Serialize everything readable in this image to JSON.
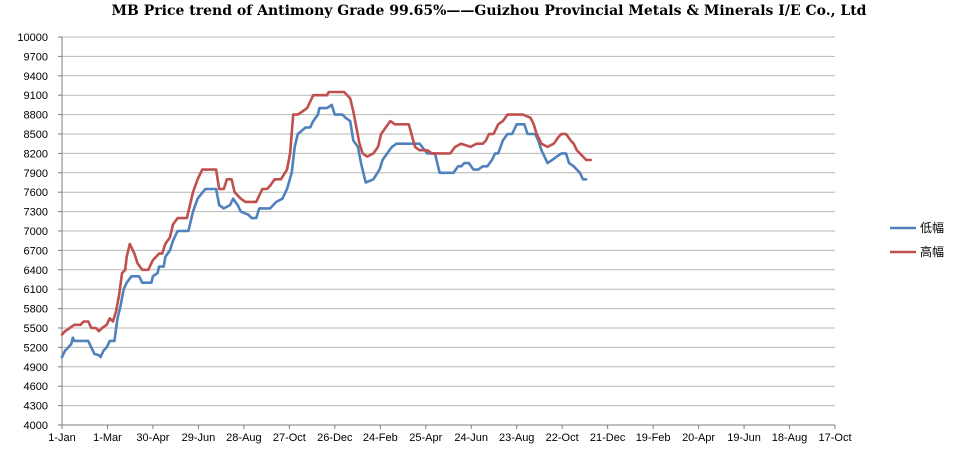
{
  "chart_data": {
    "type": "line",
    "title": "MB Price trend of Antimony Grade 99.65%——Guizhou Provincial Metals & Minerals I/E Co., Ltd",
    "ylim": [
      4000,
      10000
    ],
    "y_ticks": [
      4000,
      4300,
      4600,
      4900,
      5200,
      5500,
      5800,
      6100,
      6400,
      6700,
      7000,
      7300,
      7600,
      7900,
      8200,
      8500,
      8800,
      9100,
      9400,
      9700,
      10000
    ],
    "x_ticks": [
      "1-Jan",
      "1-Mar",
      "30-Apr",
      "29-Jun",
      "28-Aug",
      "27-Oct",
      "26-Dec",
      "24-Feb",
      "25-Apr",
      "24-Jun",
      "23-Aug",
      "22-Oct",
      "21-Dec",
      "19-Feb",
      "20-Apr",
      "19-Jun",
      "18-Aug",
      "17-Oct"
    ],
    "x_tick_interval_days": 59,
    "grid": "horizontal",
    "legend_position": "right",
    "series": [
      {
        "name": "低幅",
        "color": "#4f81bd",
        "points": [
          [
            0,
            5050
          ],
          [
            4,
            5150
          ],
          [
            8,
            5200
          ],
          [
            12,
            5250
          ],
          [
            14,
            5350
          ],
          [
            16,
            5300
          ],
          [
            20,
            5300
          ],
          [
            28,
            5300
          ],
          [
            34,
            5300
          ],
          [
            38,
            5200
          ],
          [
            42,
            5100
          ],
          [
            48,
            5080
          ],
          [
            50,
            5050
          ],
          [
            54,
            5150
          ],
          [
            58,
            5200
          ],
          [
            62,
            5300
          ],
          [
            68,
            5300
          ],
          [
            72,
            5650
          ],
          [
            76,
            5850
          ],
          [
            80,
            6100
          ],
          [
            84,
            6200
          ],
          [
            90,
            6300
          ],
          [
            100,
            6300
          ],
          [
            104,
            6200
          ],
          [
            116,
            6200
          ],
          [
            118,
            6300
          ],
          [
            124,
            6350
          ],
          [
            126,
            6450
          ],
          [
            132,
            6450
          ],
          [
            134,
            6600
          ],
          [
            140,
            6700
          ],
          [
            144,
            6850
          ],
          [
            150,
            7000
          ],
          [
            164,
            7000
          ],
          [
            170,
            7300
          ],
          [
            176,
            7500
          ],
          [
            186,
            7650
          ],
          [
            200,
            7650
          ],
          [
            204,
            7400
          ],
          [
            210,
            7350
          ],
          [
            218,
            7400
          ],
          [
            222,
            7500
          ],
          [
            228,
            7400
          ],
          [
            232,
            7300
          ],
          [
            242,
            7250
          ],
          [
            246,
            7200
          ],
          [
            252,
            7200
          ],
          [
            256,
            7350
          ],
          [
            270,
            7350
          ],
          [
            278,
            7450
          ],
          [
            286,
            7500
          ],
          [
            292,
            7650
          ],
          [
            298,
            7900
          ],
          [
            302,
            8300
          ],
          [
            306,
            8500
          ],
          [
            316,
            8600
          ],
          [
            322,
            8600
          ],
          [
            326,
            8700
          ],
          [
            332,
            8800
          ],
          [
            334,
            8900
          ],
          [
            344,
            8900
          ],
          [
            350,
            8950
          ],
          [
            354,
            8800
          ],
          [
            364,
            8800
          ],
          [
            368,
            8750
          ],
          [
            374,
            8700
          ],
          [
            378,
            8400
          ],
          [
            384,
            8300
          ],
          [
            388,
            8050
          ],
          [
            394,
            7750
          ],
          [
            404,
            7800
          ],
          [
            412,
            7950
          ],
          [
            416,
            8100
          ],
          [
            422,
            8200
          ],
          [
            428,
            8300
          ],
          [
            434,
            8350
          ],
          [
            464,
            8350
          ],
          [
            474,
            8200
          ],
          [
            484,
            8200
          ],
          [
            490,
            7900
          ],
          [
            508,
            7900
          ],
          [
            514,
            8000
          ],
          [
            518,
            8000
          ],
          [
            522,
            8050
          ],
          [
            528,
            8050
          ],
          [
            534,
            7950
          ],
          [
            540,
            7950
          ],
          [
            546,
            8000
          ],
          [
            552,
            8000
          ],
          [
            558,
            8100
          ],
          [
            562,
            8200
          ],
          [
            566,
            8200
          ],
          [
            572,
            8400
          ],
          [
            578,
            8500
          ],
          [
            584,
            8500
          ],
          [
            590,
            8650
          ],
          [
            600,
            8650
          ],
          [
            604,
            8500
          ],
          [
            614,
            8500
          ],
          [
            618,
            8400
          ],
          [
            622,
            8250
          ],
          [
            626,
            8150
          ],
          [
            630,
            8050
          ],
          [
            636,
            8100
          ],
          [
            642,
            8150
          ],
          [
            648,
            8200
          ],
          [
            654,
            8200
          ],
          [
            658,
            8050
          ],
          [
            664,
            8000
          ],
          [
            668,
            7950
          ],
          [
            672,
            7900
          ],
          [
            676,
            7800
          ],
          [
            680,
            7800
          ]
        ]
      },
      {
        "name": "高幅",
        "color": "#c0504d",
        "points": [
          [
            0,
            5400
          ],
          [
            4,
            5450
          ],
          [
            10,
            5500
          ],
          [
            16,
            5550
          ],
          [
            24,
            5550
          ],
          [
            28,
            5600
          ],
          [
            34,
            5600
          ],
          [
            38,
            5500
          ],
          [
            44,
            5500
          ],
          [
            48,
            5450
          ],
          [
            52,
            5500
          ],
          [
            58,
            5550
          ],
          [
            62,
            5650
          ],
          [
            66,
            5600
          ],
          [
            70,
            5750
          ],
          [
            74,
            6000
          ],
          [
            78,
            6350
          ],
          [
            82,
            6400
          ],
          [
            84,
            6600
          ],
          [
            88,
            6800
          ],
          [
            94,
            6650
          ],
          [
            98,
            6500
          ],
          [
            104,
            6400
          ],
          [
            112,
            6400
          ],
          [
            118,
            6550
          ],
          [
            126,
            6650
          ],
          [
            130,
            6650
          ],
          [
            134,
            6800
          ],
          [
            140,
            6900
          ],
          [
            144,
            7100
          ],
          [
            150,
            7200
          ],
          [
            162,
            7200
          ],
          [
            164,
            7300
          ],
          [
            170,
            7600
          ],
          [
            176,
            7800
          ],
          [
            182,
            7950
          ],
          [
            200,
            7950
          ],
          [
            204,
            7650
          ],
          [
            210,
            7650
          ],
          [
            214,
            7800
          ],
          [
            220,
            7800
          ],
          [
            224,
            7600
          ],
          [
            232,
            7500
          ],
          [
            238,
            7450
          ],
          [
            252,
            7450
          ],
          [
            256,
            7550
          ],
          [
            260,
            7650
          ],
          [
            266,
            7650
          ],
          [
            270,
            7700
          ],
          [
            276,
            7800
          ],
          [
            284,
            7800
          ],
          [
            292,
            7950
          ],
          [
            296,
            8200
          ],
          [
            300,
            8800
          ],
          [
            306,
            8800
          ],
          [
            312,
            8850
          ],
          [
            318,
            8900
          ],
          [
            322,
            9000
          ],
          [
            326,
            9100
          ],
          [
            344,
            9100
          ],
          [
            346,
            9150
          ],
          [
            366,
            9150
          ],
          [
            374,
            9050
          ],
          [
            378,
            8850
          ],
          [
            382,
            8600
          ],
          [
            386,
            8350
          ],
          [
            390,
            8200
          ],
          [
            396,
            8150
          ],
          [
            404,
            8200
          ],
          [
            410,
            8300
          ],
          [
            414,
            8500
          ],
          [
            420,
            8600
          ],
          [
            426,
            8700
          ],
          [
            432,
            8650
          ],
          [
            450,
            8650
          ],
          [
            458,
            8300
          ],
          [
            464,
            8250
          ],
          [
            474,
            8250
          ],
          [
            480,
            8200
          ],
          [
            504,
            8200
          ],
          [
            510,
            8300
          ],
          [
            518,
            8350
          ],
          [
            530,
            8300
          ],
          [
            538,
            8350
          ],
          [
            546,
            8350
          ],
          [
            550,
            8400
          ],
          [
            554,
            8500
          ],
          [
            560,
            8500
          ],
          [
            566,
            8650
          ],
          [
            572,
            8700
          ],
          [
            578,
            8800
          ],
          [
            598,
            8800
          ],
          [
            608,
            8750
          ],
          [
            612,
            8650
          ],
          [
            616,
            8500
          ],
          [
            622,
            8350
          ],
          [
            630,
            8300
          ],
          [
            638,
            8350
          ],
          [
            644,
            8450
          ],
          [
            648,
            8500
          ],
          [
            654,
            8500
          ],
          [
            660,
            8400
          ],
          [
            664,
            8350
          ],
          [
            668,
            8250
          ],
          [
            672,
            8200
          ],
          [
            676,
            8150
          ],
          [
            680,
            8100
          ],
          [
            686,
            8100
          ]
        ]
      }
    ]
  }
}
